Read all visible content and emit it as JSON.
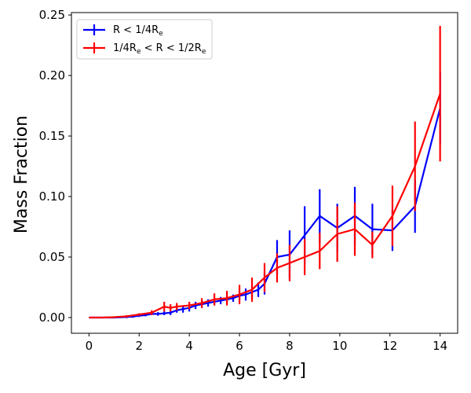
{
  "chart_data": {
    "type": "line",
    "xlabel": "Age [Gyr]",
    "ylabel": "Mass Fraction",
    "xlim": [
      -0.7,
      14.7
    ],
    "ylim": [
      -0.013,
      0.252
    ],
    "xticks": [
      "0",
      "2",
      "4",
      "6",
      "8",
      "10",
      "12",
      "14"
    ],
    "yticks": [
      "0.00",
      "0.05",
      "0.10",
      "0.15",
      "0.20",
      "0.25"
    ],
    "grid": false,
    "legend_position": "top-left",
    "series": [
      {
        "name": "R < 1/4R",
        "name_sub": "e",
        "color": "#0000ff",
        "x": [
          0,
          0.5,
          1,
          1.5,
          1.75,
          2,
          2.25,
          2.5,
          2.75,
          3,
          3.25,
          3.5,
          3.75,
          4,
          4.25,
          4.5,
          4.75,
          5,
          5.25,
          5.5,
          5.75,
          6,
          6.25,
          6.5,
          6.75,
          7,
          7.5,
          8,
          8.6,
          9.2,
          9.9,
          10.6,
          11.3,
          12.1,
          13,
          14
        ],
        "y": [
          0,
          0,
          0,
          0.0005,
          0.0008,
          0.0015,
          0.002,
          0.003,
          0.003,
          0.0035,
          0.004,
          0.006,
          0.007,
          0.008,
          0.01,
          0.011,
          0.012,
          0.013,
          0.014,
          0.015,
          0.016,
          0.018,
          0.019,
          0.021,
          0.023,
          0.028,
          0.05,
          0.052,
          0.068,
          0.084,
          0.074,
          0.084,
          0.073,
          0.072,
          0.092,
          0.173
        ],
        "err": [
          0,
          0,
          0,
          0.001,
          0.001,
          0.001,
          0.001,
          0.001,
          0.0015,
          0.0015,
          0.002,
          0.002,
          0.003,
          0.003,
          0.003,
          0.003,
          0.003,
          0.003,
          0.003,
          0.003,
          0.003,
          0.004,
          0.005,
          0.005,
          0.006,
          0.009,
          0.014,
          0.02,
          0.024,
          0.022,
          0.02,
          0.024,
          0.021,
          0.017,
          0.022,
          0.03
        ]
      },
      {
        "name": "1/4R",
        "name_sub": "e",
        "name_mid": " < R < 1/2R",
        "name_sub2": "e",
        "color": "#ff0000",
        "x": [
          0,
          0.5,
          1,
          1.5,
          2,
          2.5,
          3,
          3.25,
          3.5,
          4,
          4.5,
          5,
          5.5,
          6,
          6.5,
          7,
          7.5,
          8,
          8.6,
          9.2,
          9.9,
          10.6,
          11.3,
          12.1,
          13,
          14
        ],
        "y": [
          0,
          0,
          0.0003,
          0.001,
          0.0025,
          0.004,
          0.009,
          0.008,
          0.009,
          0.01,
          0.012,
          0.015,
          0.016,
          0.019,
          0.023,
          0.033,
          0.041,
          0.045,
          0.05,
          0.055,
          0.069,
          0.073,
          0.06,
          0.084,
          0.125,
          0.185
        ],
        "err": [
          0,
          0,
          0.0005,
          0.001,
          0.001,
          0.002,
          0.004,
          0.003,
          0.003,
          0.003,
          0.004,
          0.005,
          0.006,
          0.008,
          0.01,
          0.012,
          0.012,
          0.015,
          0.015,
          0.015,
          0.023,
          0.022,
          0.011,
          0.025,
          0.037,
          0.056
        ]
      }
    ]
  }
}
